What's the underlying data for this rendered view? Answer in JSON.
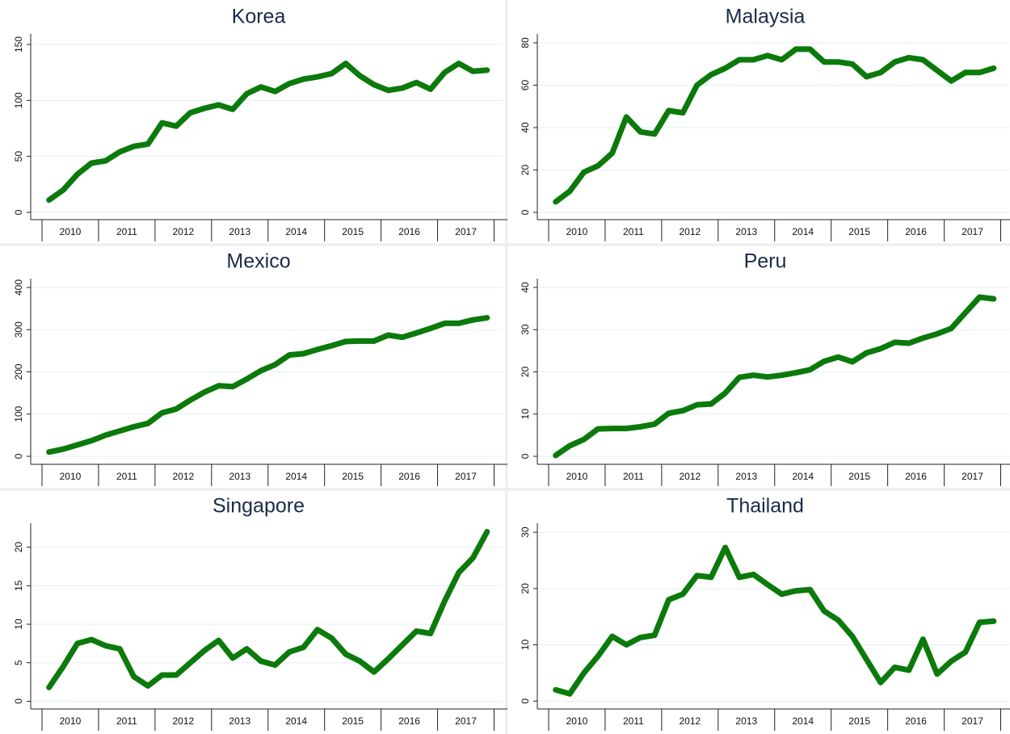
{
  "chart_data": [
    {
      "type": "line",
      "title": "Korea",
      "color": "#0b7a0b",
      "x": [
        2010.125,
        2010.375,
        2010.625,
        2010.875,
        2011.125,
        2011.375,
        2011.625,
        2011.875,
        2012.125,
        2012.375,
        2012.625,
        2012.875,
        2013.125,
        2013.375,
        2013.625,
        2013.875,
        2014.125,
        2014.375,
        2014.625,
        2014.875,
        2015.125,
        2015.375,
        2015.625,
        2015.875,
        2016.125,
        2016.375,
        2016.625,
        2016.875,
        2017.125,
        2017.375,
        2017.625,
        2017.875
      ],
      "values": [
        11,
        20,
        34,
        44,
        46,
        54,
        59,
        61,
        80,
        77,
        89,
        93,
        96,
        92,
        106,
        112,
        108,
        115,
        119,
        121,
        124,
        133,
        122,
        114,
        109,
        111,
        116,
        110,
        125,
        133,
        126,
        127
      ],
      "xlim": [
        2009.8,
        2018.15
      ],
      "xticks": [
        {
          "value": 2010.5,
          "label": "2010"
        },
        {
          "value": 2011.5,
          "label": "2011"
        },
        {
          "value": 2012.5,
          "label": "2012"
        },
        {
          "value": 2013.5,
          "label": "2013"
        },
        {
          "value": 2014.5,
          "label": "2014"
        },
        {
          "value": 2015.5,
          "label": "2015"
        },
        {
          "value": 2016.5,
          "label": "2016"
        },
        {
          "value": 2017.5,
          "label": "2017"
        }
      ],
      "ylim": [
        -6.5,
        159.4
      ],
      "yticks": [
        0,
        50,
        100,
        150
      ],
      "grid": true
    },
    {
      "type": "line",
      "title": "Malaysia",
      "color": "#0b7a0b",
      "x": [
        2010.125,
        2010.375,
        2010.625,
        2010.875,
        2011.125,
        2011.375,
        2011.625,
        2011.875,
        2012.125,
        2012.375,
        2012.625,
        2012.875,
        2013.125,
        2013.375,
        2013.625,
        2013.875,
        2014.125,
        2014.375,
        2014.625,
        2014.875,
        2015.125,
        2015.375,
        2015.625,
        2015.875,
        2016.125,
        2016.375,
        2016.625,
        2016.875,
        2017.125,
        2017.375,
        2017.625,
        2017.875
      ],
      "values": [
        5,
        10,
        19,
        22,
        28,
        45,
        38,
        37,
        48,
        47,
        60,
        65,
        68,
        72,
        72,
        74,
        72,
        77,
        77,
        71,
        71,
        70,
        64,
        66,
        71,
        73,
        72,
        67,
        62,
        66,
        66,
        68
      ],
      "xlim": [
        2009.8,
        2018.15
      ],
      "xticks": [
        {
          "value": 2010.5,
          "label": "2010"
        },
        {
          "value": 2011.5,
          "label": "2011"
        },
        {
          "value": 2012.5,
          "label": "2012"
        },
        {
          "value": 2013.5,
          "label": "2013"
        },
        {
          "value": 2014.5,
          "label": "2014"
        },
        {
          "value": 2015.5,
          "label": "2015"
        },
        {
          "value": 2016.5,
          "label": "2016"
        },
        {
          "value": 2017.5,
          "label": "2017"
        }
      ],
      "ylim": [
        -3.4,
        84.2
      ],
      "yticks": [
        0,
        20,
        40,
        60,
        80
      ],
      "grid": true
    },
    {
      "type": "line",
      "title": "Mexico",
      "color": "#0b7a0b",
      "x": [
        2010.125,
        2010.375,
        2010.625,
        2010.875,
        2011.125,
        2011.375,
        2011.625,
        2011.875,
        2012.125,
        2012.375,
        2012.625,
        2012.875,
        2013.125,
        2013.375,
        2013.625,
        2013.875,
        2014.125,
        2014.375,
        2014.625,
        2014.875,
        2015.125,
        2015.375,
        2015.625,
        2015.875,
        2016.125,
        2016.375,
        2016.625,
        2016.875,
        2017.125,
        2017.375,
        2017.625,
        2017.875
      ],
      "values": [
        10,
        17,
        27,
        37,
        50,
        60,
        70,
        78,
        103,
        112,
        133,
        152,
        167,
        165,
        183,
        203,
        217,
        240,
        243,
        253,
        262,
        272,
        273,
        273,
        287,
        282,
        292,
        303,
        315,
        315,
        323,
        328
      ],
      "xlim": [
        2009.8,
        2018.15
      ],
      "xticks": [
        {
          "value": 2010.5,
          "label": "2010"
        },
        {
          "value": 2011.5,
          "label": "2011"
        },
        {
          "value": 2012.5,
          "label": "2012"
        },
        {
          "value": 2013.5,
          "label": "2013"
        },
        {
          "value": 2014.5,
          "label": "2014"
        },
        {
          "value": 2015.5,
          "label": "2015"
        },
        {
          "value": 2016.5,
          "label": "2016"
        },
        {
          "value": 2017.5,
          "label": "2017"
        }
      ],
      "ylim": [
        -19,
        421
      ],
      "yticks": [
        0,
        100,
        200,
        300,
        400
      ],
      "grid": true
    },
    {
      "type": "line",
      "title": "Peru",
      "color": "#0b7a0b",
      "x": [
        2010.125,
        2010.375,
        2010.625,
        2010.875,
        2011.125,
        2011.375,
        2011.625,
        2011.875,
        2012.125,
        2012.375,
        2012.625,
        2012.875,
        2013.125,
        2013.375,
        2013.625,
        2013.875,
        2014.125,
        2014.375,
        2014.625,
        2014.875,
        2015.125,
        2015.375,
        2015.625,
        2015.875,
        2016.125,
        2016.375,
        2016.625,
        2016.875,
        2017.125,
        2017.375,
        2017.625,
        2017.875
      ],
      "values": [
        0.2,
        2.5,
        4,
        6.5,
        6.6,
        6.6,
        7,
        7.6,
        10.2,
        10.8,
        12.2,
        12.4,
        15,
        18.7,
        19.2,
        18.8,
        19.2,
        19.8,
        20.5,
        22.5,
        23.5,
        22.4,
        24.5,
        25.5,
        27,
        26.8,
        28,
        29,
        30.3,
        34,
        37.7,
        37.3
      ],
      "xlim": [
        2009.8,
        2018.15
      ],
      "xticks": [
        {
          "value": 2010.5,
          "label": "2010"
        },
        {
          "value": 2011.5,
          "label": "2011"
        },
        {
          "value": 2012.5,
          "label": "2012"
        },
        {
          "value": 2013.5,
          "label": "2013"
        },
        {
          "value": 2014.5,
          "label": "2014"
        },
        {
          "value": 2015.5,
          "label": "2015"
        },
        {
          "value": 2016.5,
          "label": "2016"
        },
        {
          "value": 2017.5,
          "label": "2017"
        }
      ],
      "ylim": [
        -1.9,
        42.1
      ],
      "yticks": [
        0,
        10,
        20,
        30,
        40
      ],
      "grid": true
    },
    {
      "type": "line",
      "title": "Singapore",
      "color": "#0b7a0b",
      "x": [
        2010.125,
        2010.375,
        2010.625,
        2010.875,
        2011.125,
        2011.375,
        2011.625,
        2011.875,
        2012.125,
        2012.375,
        2012.625,
        2012.875,
        2013.125,
        2013.375,
        2013.625,
        2013.875,
        2014.125,
        2014.375,
        2014.625,
        2014.875,
        2015.125,
        2015.375,
        2015.625,
        2015.875,
        2016.125,
        2016.375,
        2016.625,
        2016.875,
        2017.125,
        2017.375,
        2017.625,
        2017.875
      ],
      "values": [
        1.8,
        4.5,
        7.5,
        8,
        7.2,
        6.8,
        3.2,
        2,
        3.4,
        3.4,
        5,
        6.6,
        7.9,
        5.6,
        6.8,
        5.2,
        4.7,
        6.4,
        7,
        9.3,
        8.2,
        6.1,
        5.2,
        3.8,
        5.5,
        7.3,
        9.1,
        8.8,
        13,
        16.7,
        18.6,
        22
      ],
      "xlim": [
        2009.8,
        2018.15
      ],
      "xticks": [
        {
          "value": 2010.5,
          "label": "2010"
        },
        {
          "value": 2011.5,
          "label": "2011"
        },
        {
          "value": 2012.5,
          "label": "2012"
        },
        {
          "value": 2013.5,
          "label": "2013"
        },
        {
          "value": 2014.5,
          "label": "2014"
        },
        {
          "value": 2015.5,
          "label": "2015"
        },
        {
          "value": 2016.5,
          "label": "2016"
        },
        {
          "value": 2017.5,
          "label": "2017"
        }
      ],
      "ylim": [
        -1,
        23.1
      ],
      "yticks": [
        0,
        5,
        10,
        15,
        20
      ],
      "grid": true
    },
    {
      "type": "line",
      "title": "Thailand",
      "color": "#0b7a0b",
      "x": [
        2010.125,
        2010.375,
        2010.625,
        2010.875,
        2011.125,
        2011.375,
        2011.625,
        2011.875,
        2012.125,
        2012.375,
        2012.625,
        2012.875,
        2013.125,
        2013.375,
        2013.625,
        2013.875,
        2014.125,
        2014.375,
        2014.625,
        2014.875,
        2015.125,
        2015.375,
        2015.625,
        2015.875,
        2016.125,
        2016.375,
        2016.625,
        2016.875,
        2017.125,
        2017.375,
        2017.625,
        2017.875
      ],
      "values": [
        2,
        1.3,
        5,
        8,
        11.5,
        10,
        11.3,
        11.7,
        18,
        19,
        22.3,
        22,
        27.3,
        22,
        22.5,
        20.7,
        19,
        19.6,
        19.8,
        16,
        14.4,
        11.5,
        7.4,
        3.3,
        6,
        5.5,
        11,
        4.8,
        7.1,
        8.7,
        14,
        14.2
      ],
      "xlim": [
        2009.8,
        2018.15
      ],
      "xticks": [
        {
          "value": 2010.5,
          "label": "2010"
        },
        {
          "value": 2011.5,
          "label": "2011"
        },
        {
          "value": 2012.5,
          "label": "2012"
        },
        {
          "value": 2013.5,
          "label": "2013"
        },
        {
          "value": 2014.5,
          "label": "2014"
        },
        {
          "value": 2015.5,
          "label": "2015"
        },
        {
          "value": 2016.5,
          "label": "2016"
        },
        {
          "value": 2017.5,
          "label": "2017"
        }
      ],
      "ylim": [
        -1.4,
        31.6
      ],
      "yticks": [
        0,
        10,
        20,
        30
      ],
      "grid": true
    }
  ]
}
